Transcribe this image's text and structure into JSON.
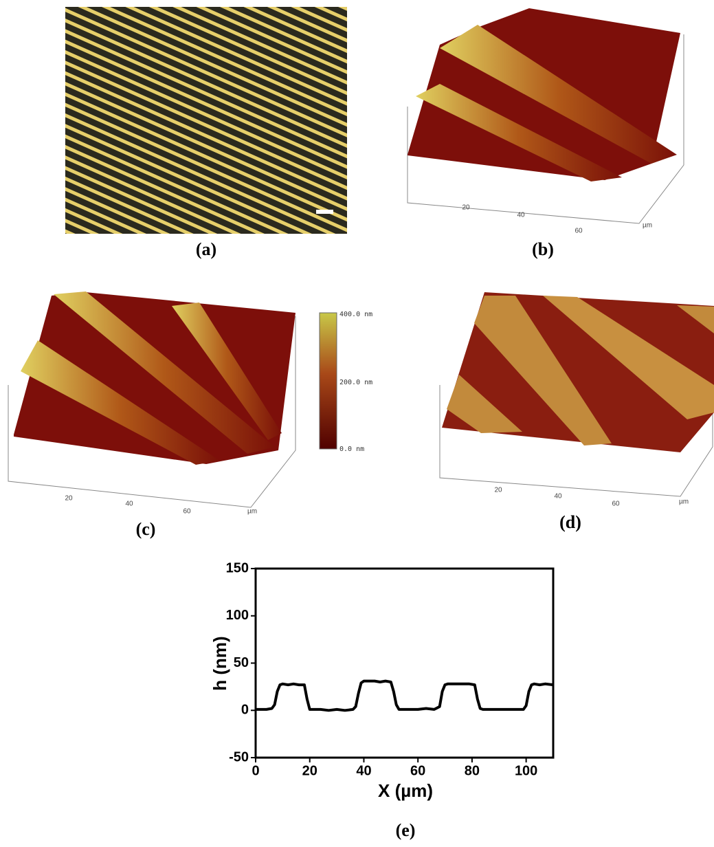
{
  "panels": {
    "a": {
      "label": "(a)"
    },
    "b": {
      "label": "(b)",
      "ticks": [
        "20",
        "40",
        "60"
      ],
      "unit": "µm"
    },
    "c": {
      "label": "(c)",
      "ticks": [
        "20",
        "40",
        "60"
      ],
      "unit": "µm"
    },
    "d": {
      "label": "(d)",
      "ticks": [
        "20",
        "40",
        "60"
      ],
      "unit": "µm"
    }
  },
  "colorbar": {
    "labels": [
      "400.0 nm",
      "200.0 nm",
      "0.0 nm"
    ]
  },
  "chart_data": {
    "type": "line",
    "label": "(e)",
    "xlabel": "X (µm)",
    "ylabel": "h (nm)",
    "color": "#000000",
    "x": [
      0,
      2,
      4,
      6,
      7,
      8,
      9,
      10,
      12,
      14,
      16,
      18,
      19,
      20,
      21,
      24,
      27,
      30,
      33,
      36,
      37,
      38,
      39,
      40,
      42,
      44,
      46,
      48,
      50,
      51,
      52,
      53,
      54,
      57,
      60,
      63,
      66,
      68,
      69,
      70,
      71,
      73,
      75,
      77,
      79,
      81,
      82,
      83,
      84,
      87,
      90,
      93,
      96,
      99,
      100,
      101,
      102,
      103,
      105,
      107,
      110
    ],
    "values": [
      1,
      1,
      1,
      2,
      6,
      20,
      27,
      28,
      27,
      28,
      27,
      27,
      12,
      1,
      1,
      1,
      0,
      1,
      0,
      1,
      4,
      18,
      29,
      31,
      31,
      31,
      30,
      31,
      30,
      20,
      6,
      1,
      1,
      1,
      1,
      2,
      1,
      4,
      20,
      27,
      28,
      28,
      28,
      28,
      28,
      27,
      12,
      2,
      1,
      1,
      1,
      1,
      1,
      1,
      5,
      20,
      27,
      28,
      27,
      28,
      27
    ],
    "xlim": [
      0,
      110
    ],
    "ylim": [
      -50,
      150
    ],
    "xticks": [
      0,
      20,
      40,
      60,
      80,
      100
    ],
    "yticks": [
      -50,
      0,
      50,
      100,
      150
    ]
  }
}
